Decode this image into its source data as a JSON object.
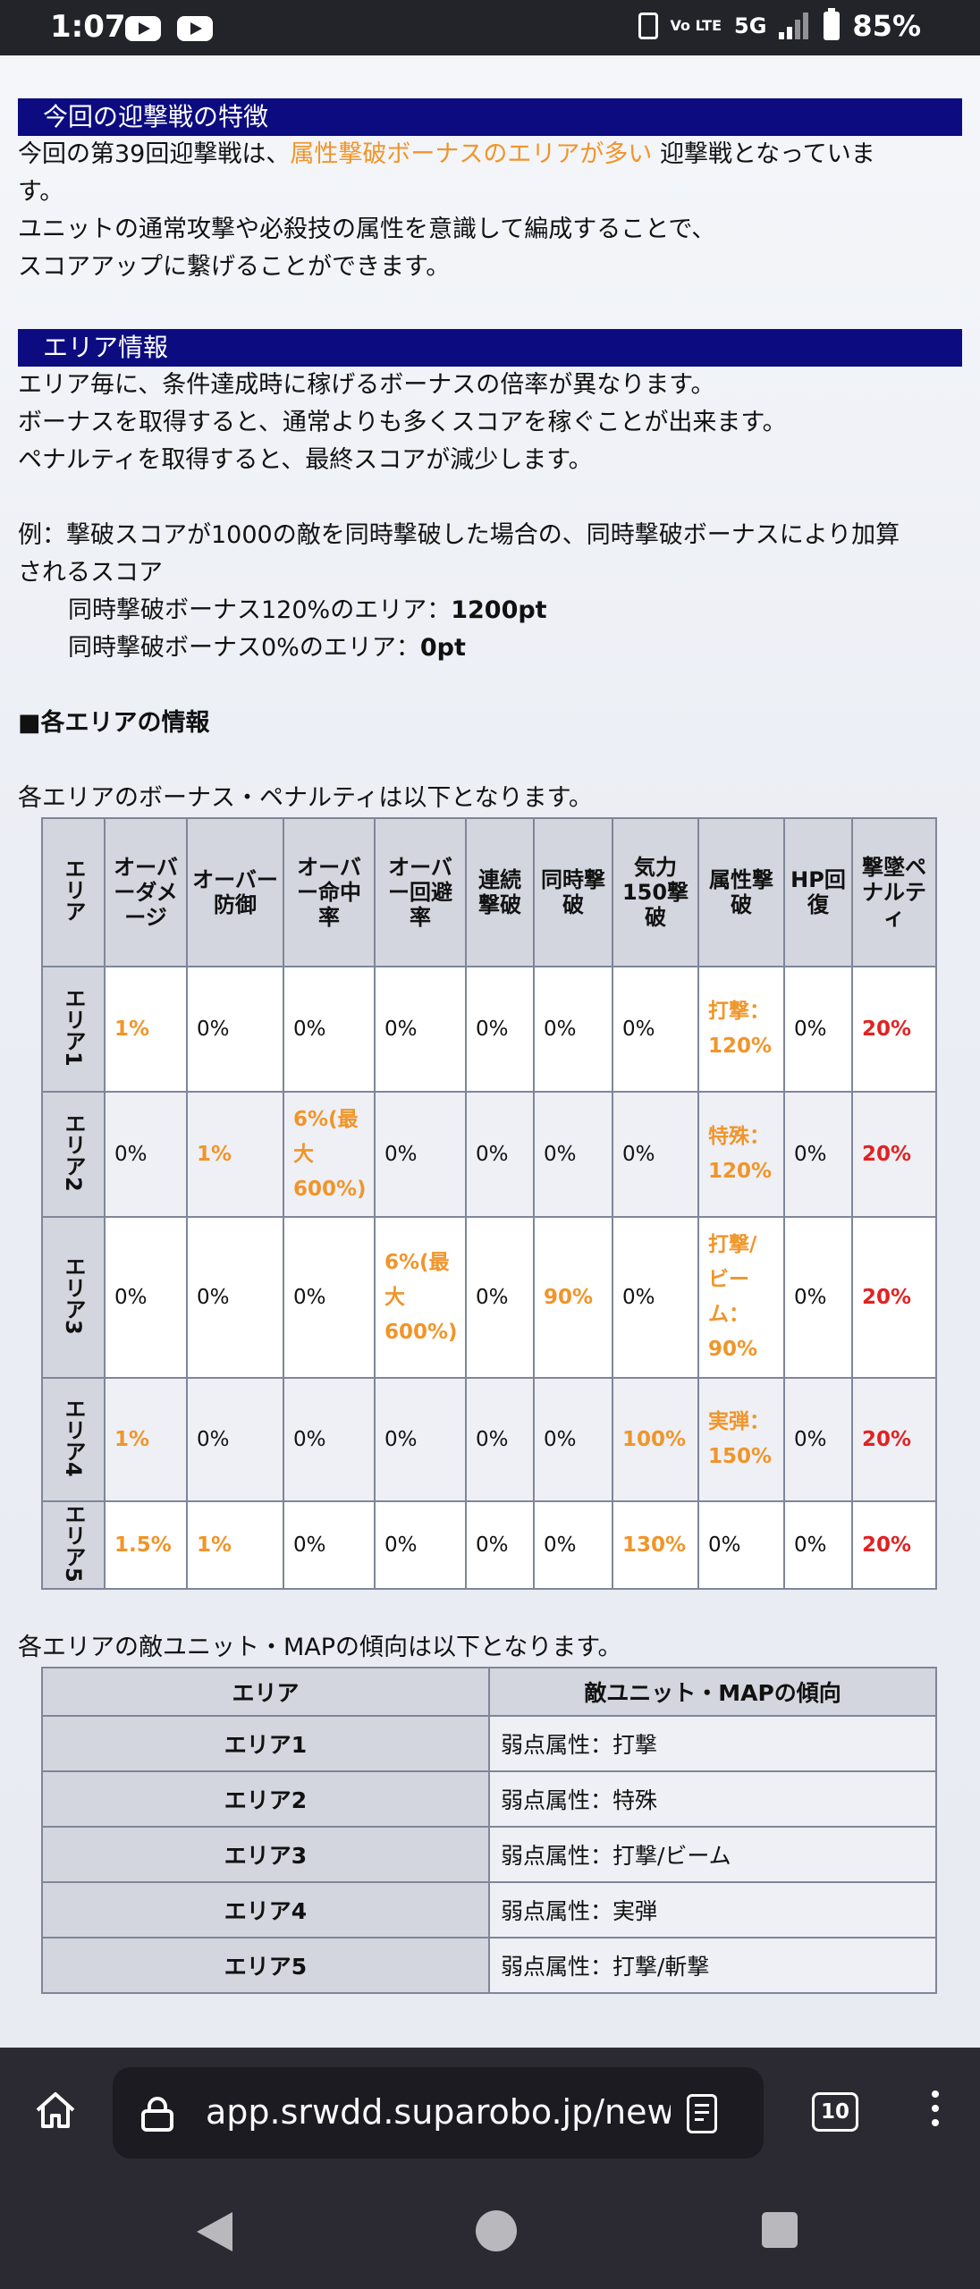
{
  "status_bar": {
    "time": "1:07",
    "network": "5G",
    "volte": "Vo LTE",
    "battery": "85%"
  },
  "section1": {
    "title": "今回の迎撃戦の特徴",
    "line1_pre": "今回の第39回迎撃戦は、",
    "line1_highlight": "属性撃破ボーナスのエリアが多い",
    "line1_post": " 迎撃戦となっていま",
    "line1_wrap": "す。",
    "line2": "ユニットの通常攻撃や必殺技の属性を意識して編成することで、",
    "line3": "スコアアップに繋げることができます。"
  },
  "section2": {
    "title": "エリア情報",
    "line1": "エリア毎に、条件達成時に稼げるボーナスの倍率が異なります。",
    "line2": "ボーナスを取得すると、通常よりも多くスコアを稼ぐことが出来ます。",
    "line3": "ペナルティを取得すると、最終スコアが減少します。",
    "example_line1": "例：撃破スコアが1000の敵を同時撃破した場合の、同時撃破ボーナスにより加算",
    "example_line2": "されるスコア",
    "example_a_label": "同時撃破ボーナス120%のエリア：",
    "example_a_value": "1200pt",
    "example_b_label": "同時撃破ボーナス0%のエリア：",
    "example_b_value": "0pt",
    "area_info_heading": "■各エリアの情報",
    "bonus_intro": "各エリアのボーナス・ペナルティは以下となります。",
    "trend_intro": "各エリアの敵ユニット・MAPの傾向は以下となります。"
  },
  "bonus_table": {
    "headers": [
      "エリア",
      "オーバーダメージ",
      "オーバー防御",
      "オーバー命中率",
      "オーバー回避率",
      "連続撃破",
      "同時撃破",
      "気力150撃破",
      "属性撃破",
      "HP回復",
      "撃墜ペナルティ"
    ],
    "rows": [
      {
        "area": "エリア1",
        "cells": [
          "1%",
          "0%",
          "0%",
          "0%",
          "0%",
          "0%",
          "0%",
          "打撃：120%",
          "0%",
          "20%"
        ]
      },
      {
        "area": "エリア2",
        "cells": [
          "0%",
          "1%",
          "6%(最大600%)",
          "0%",
          "0%",
          "0%",
          "0%",
          "特殊：120%",
          "0%",
          "20%"
        ]
      },
      {
        "area": "エリア3",
        "cells": [
          "0%",
          "0%",
          "0%",
          "6%(最大600%)",
          "0%",
          "90%",
          "0%",
          "打撃/ビーム：90%",
          "0%",
          "20%"
        ]
      },
      {
        "area": "エリア4",
        "cells": [
          "1%",
          "0%",
          "0%",
          "0%",
          "0%",
          "0%",
          "100%",
          "実弾：150%",
          "0%",
          "20%"
        ]
      },
      {
        "area": "エリア5",
        "cells": [
          "1.5%",
          "1%",
          "0%",
          "0%",
          "0%",
          "0%",
          "130%",
          "0%",
          "0%",
          "20%"
        ]
      }
    ]
  },
  "trend_table": {
    "headers": [
      "エリア",
      "敵ユニット・MAPの傾向"
    ],
    "rows": [
      {
        "area": "エリア1",
        "trend": "弱点属性：打撃"
      },
      {
        "area": "エリア2",
        "trend": "弱点属性：特殊"
      },
      {
        "area": "エリア3",
        "trend": "弱点属性：打撃/ビーム"
      },
      {
        "area": "エリア4",
        "trend": "弱点属性：実弾"
      },
      {
        "area": "エリア5",
        "trend": "弱点属性：打撃/斬撃"
      }
    ]
  },
  "browser": {
    "url": "app.srwdd.suparobo.jp/news",
    "tab_count": "10"
  },
  "colors": {
    "section_header": "#0c0c80",
    "highlight_orange": "#f0952a",
    "penalty_red": "#e22222"
  }
}
